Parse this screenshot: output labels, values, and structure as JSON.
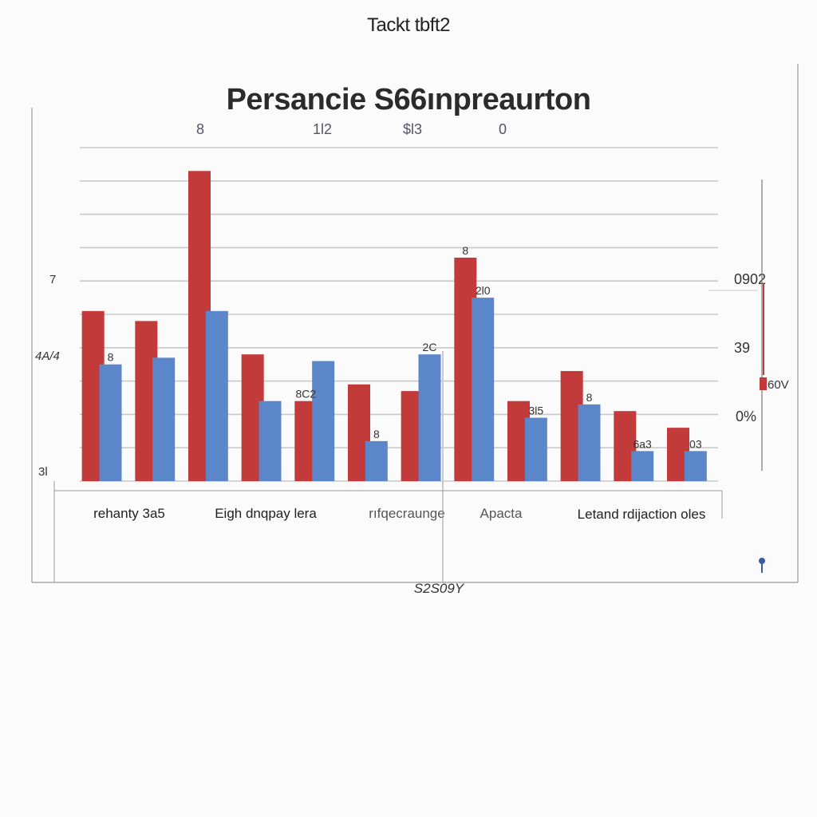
{
  "header": {
    "top_label": "Tackt tbft2",
    "title": "Persancie  S66ınpreaurton"
  },
  "top_ticks": [
    "8",
    "1l2",
    "$l3",
    "0"
  ],
  "left_ticks": [
    "7",
    "4A/4",
    "3l"
  ],
  "right_axis": {
    "ticks": [
      "0902",
      "39",
      "0%"
    ],
    "marker_label": "60V"
  },
  "x_axis_label": "S2S09Y",
  "colors": {
    "series_a": "#c23a3a",
    "series_b": "#5b86c9",
    "grid": "#c9c9c9",
    "axis": "#9a9a9a"
  },
  "chart_data": {
    "type": "bar",
    "title": "Persancie  S66ınpreaurton",
    "xlabel": "S2S09Y",
    "ylabel": "",
    "category_labels": [
      "rehanty 3a5",
      "Eigh dnqpay lera",
      "rıfqecraunge",
      "Apacta",
      "Letand rdijaction oles"
    ],
    "categories": [
      "1",
      "2",
      "3",
      "4",
      "5",
      "6",
      "7",
      "8",
      "9",
      "10",
      "11",
      "12"
    ],
    "series": [
      {
        "values": [
          51,
          48,
          93,
          38,
          24,
          29,
          27,
          67,
          24,
          33,
          21,
          16
        ]
      },
      {
        "values": [
          35,
          37,
          51,
          24,
          36,
          12,
          38,
          55,
          19,
          23,
          9,
          9
        ]
      }
    ],
    "data_labels": [
      {
        "text": "8",
        "bar": 1
      },
      {
        "text": "8C2",
        "bar": 8
      },
      {
        "text": "8",
        "bar": 11
      },
      {
        "text": "2C",
        "bar": 13
      },
      {
        "text": "2l0",
        "bar": 15
      },
      {
        "text": "8",
        "bar": 14
      },
      {
        "text": "3l5",
        "bar": 17
      },
      {
        "text": "8",
        "bar": 19
      },
      {
        "text": "6a3",
        "bar": 21
      },
      {
        "text": "03",
        "bar": 23
      }
    ],
    "ylim": [
      0,
      100
    ],
    "grid": true
  }
}
